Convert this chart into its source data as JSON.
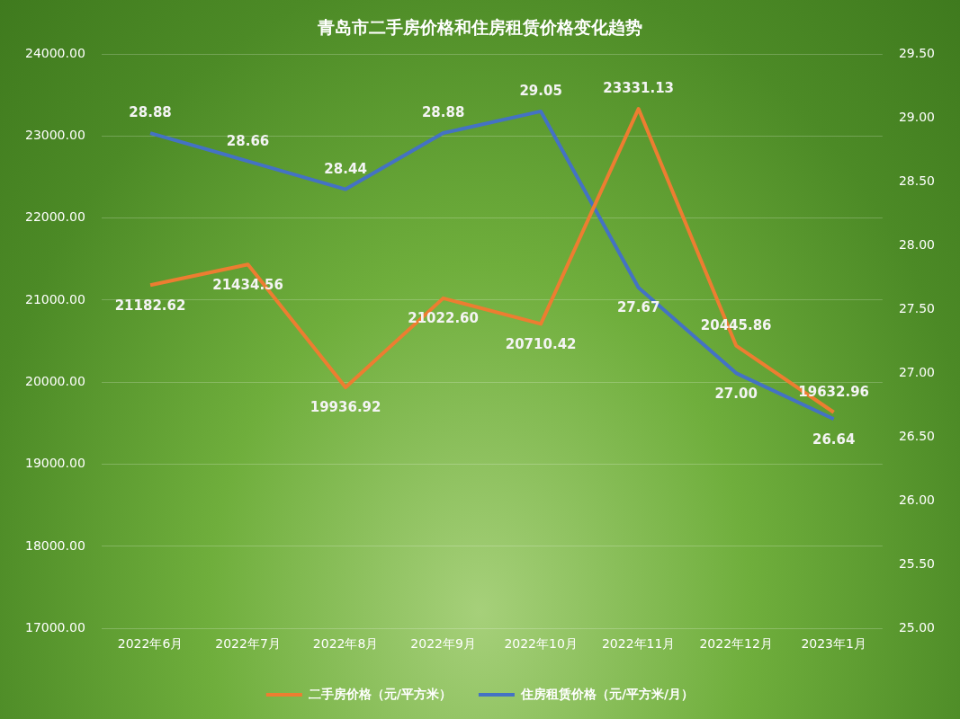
{
  "chart_data": {
    "type": "line",
    "title": "青岛市二手房价格和住房租赁价格变化趋势",
    "categories": [
      "2022年6月",
      "2022年7月",
      "2022年8月",
      "2022年9月",
      "2022年10月",
      "2022年11月",
      "2022年12月",
      "2023年1月"
    ],
    "series": [
      {
        "name": "二手房价格（元/平方米）",
        "color": "#ed7d31",
        "values": [
          21182.62,
          21434.56,
          19936.92,
          21022.6,
          20710.42,
          23331.13,
          20445.86,
          19632.96
        ],
        "value_labels": [
          "21182.62",
          "21434.56",
          "19936.92",
          "21022.60",
          "20710.42",
          "23331.13",
          "20445.86",
          "19632.96"
        ]
      },
      {
        "name": "住房租赁价格（元/平方米/月）",
        "color": "#4472c4",
        "axis": "y2",
        "values": [
          28.88,
          28.66,
          28.44,
          28.88,
          29.05,
          27.67,
          27,
          26.64
        ],
        "value_labels": [
          "28.88",
          "28.66",
          "28.44",
          "28.88",
          "29.05",
          "27.67",
          "27.00",
          "26.64"
        ]
      }
    ],
    "ylim": [
      17000,
      24000
    ],
    "yticks": [
      {
        "value": 17000,
        "label": "17000.00"
      },
      {
        "value": 18000,
        "label": "18000.00"
      },
      {
        "value": 19000,
        "label": "19000.00"
      },
      {
        "value": 20000,
        "label": "20000.00"
      },
      {
        "value": 21000,
        "label": "21000.00"
      },
      {
        "value": 22000,
        "label": "22000.00"
      },
      {
        "value": 23000,
        "label": "23000.00"
      },
      {
        "value": 24000,
        "label": "24000.00"
      }
    ],
    "y2lim": [
      25,
      29.5
    ],
    "y2ticks": [
      {
        "value": 25,
        "label": "25.00"
      },
      {
        "value": 25.5,
        "label": "25.50"
      },
      {
        "value": 26,
        "label": "26.00"
      },
      {
        "value": 26.5,
        "label": "26.50"
      },
      {
        "value": 27,
        "label": "27.00"
      },
      {
        "value": 27.5,
        "label": "27.50"
      },
      {
        "value": 28,
        "label": "28.00"
      },
      {
        "value": 28.5,
        "label": "28.50"
      },
      {
        "value": 29,
        "label": "29.00"
      },
      {
        "value": 29.5,
        "label": "29.50"
      }
    ],
    "grid": "y",
    "legend": "bottom",
    "marker": "none",
    "line_style": "solid"
  }
}
